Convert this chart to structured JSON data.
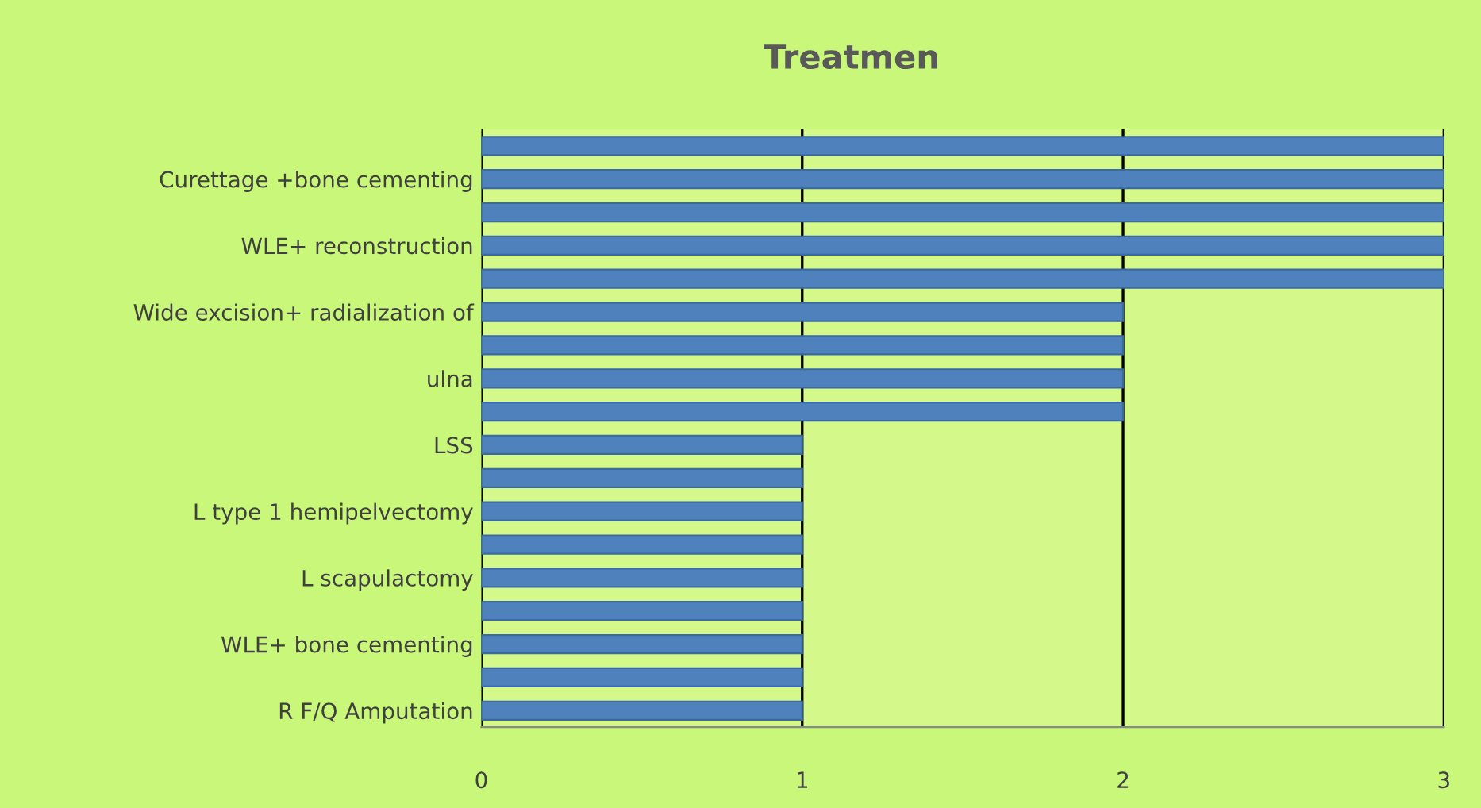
{
  "chart_data": {
    "type": "bar",
    "orientation": "horizontal",
    "title": "Treatmen",
    "categories": [
      null,
      "Curettage +bone cementing",
      null,
      "WLE+ reconstruction",
      null,
      "Wide excision+ radialization of",
      null,
      "ulna",
      null,
      "LSS",
      null,
      "L type 1 hemipelvectomy",
      null,
      "L scapulactomy",
      null,
      "WLE+ bone cementing",
      null,
      "R F/Q Amputation"
    ],
    "values": [
      3,
      3,
      3,
      3,
      3,
      2,
      2,
      2,
      2,
      1,
      1,
      1,
      1,
      1,
      1,
      1,
      1,
      1
    ],
    "color": "#4f81bd",
    "xlim": [
      0,
      3
    ],
    "xticks": [
      0,
      1,
      2,
      3
    ],
    "grid": "x",
    "legend": false
  }
}
